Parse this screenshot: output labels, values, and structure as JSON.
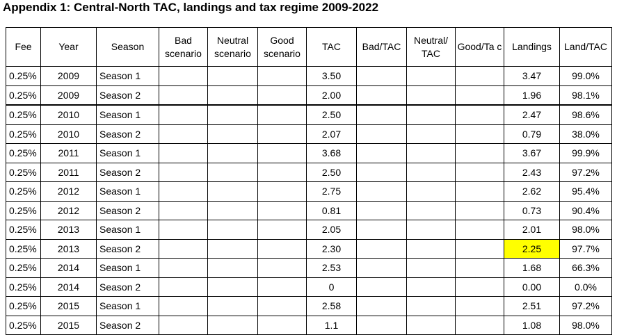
{
  "title": "Appendix 1: Central-North TAC, landings and tax regime 2009-2022",
  "columns": [
    "Fee",
    "Year",
    "Season",
    "Bad scenario",
    "Neutral scenario",
    "Good scenario",
    "TAC",
    "Bad/TAC",
    "Neutral/ TAC",
    "Good/Ta c",
    "Landings",
    "Land/TAC"
  ],
  "rows": [
    {
      "fee": "0.25%",
      "year": "2009",
      "season": "Season 1",
      "tac": "3.50",
      "landings": "3.47",
      "land_tac": "99.0%"
    },
    {
      "fee": "0.25%",
      "year": "2009",
      "season": "Season 2",
      "tac": "2.00",
      "landings": "1.96",
      "land_tac": "98.1%"
    },
    {
      "fee": "0.25%",
      "year": "2010",
      "season": "Season 1",
      "tac": "2.50",
      "landings": "2.47",
      "land_tac": "98.6%"
    },
    {
      "fee": "0.25%",
      "year": "2010",
      "season": "Season 2",
      "tac": "2.07",
      "landings": "0.79",
      "land_tac": "38.0%"
    },
    {
      "fee": "0.25%",
      "year": "2011",
      "season": "Season 1",
      "tac": "3.68",
      "landings": "3.67",
      "land_tac": "99.9%"
    },
    {
      "fee": "0.25%",
      "year": "2011",
      "season": "Season 2",
      "tac": "2.50",
      "landings": "2.43",
      "land_tac": "97.2%"
    },
    {
      "fee": "0.25%",
      "year": "2012",
      "season": "Season 1",
      "tac": "2.75",
      "landings": "2.62",
      "land_tac": "95.4%"
    },
    {
      "fee": "0.25%",
      "year": "2012",
      "season": "Season 2",
      "tac": "0.81",
      "landings": "0.73",
      "land_tac": "90.4%"
    },
    {
      "fee": "0.25%",
      "year": "2013",
      "season": "Season 1",
      "tac": "2.05",
      "landings": "2.01",
      "land_tac": "98.0%"
    },
    {
      "fee": "0.25%",
      "year": "2013",
      "season": "Season 2",
      "tac": "2.30",
      "landings": "2.25",
      "land_tac": "97.7%"
    },
    {
      "fee": "0.25%",
      "year": "2014",
      "season": "Season 1",
      "tac": "2.53",
      "landings": "1.68",
      "land_tac": "66.3%"
    },
    {
      "fee": "0.25%",
      "year": "2014",
      "season": "Season 2",
      "tac": "0",
      "landings": "0.00",
      "land_tac": "0.0%"
    },
    {
      "fee": "0.25%",
      "year": "2015",
      "season": "Season 1",
      "tac": "2.58",
      "landings": "2.51",
      "land_tac": "97.2%"
    },
    {
      "fee": "0.25%",
      "year": "2015",
      "season": "Season 2",
      "tac": "1.1",
      "landings": "1.08",
      "land_tac": "98.0%"
    }
  ],
  "highlight_color": "#ffff00"
}
